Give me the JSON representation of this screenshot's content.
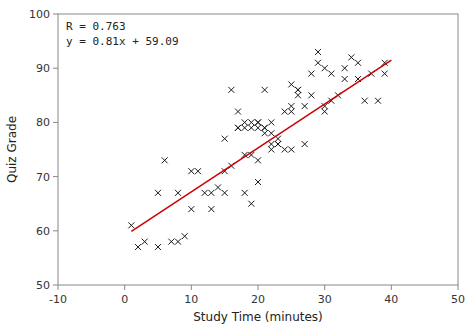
{
  "chart_data": {
    "type": "scatter",
    "xlabel": "Study Time (minutes)",
    "ylabel": "Quiz Grade",
    "xlim": [
      -10,
      50
    ],
    "ylim": [
      50,
      100
    ],
    "xticks": [
      -10,
      0,
      10,
      20,
      30,
      40,
      50
    ],
    "yticks": [
      50,
      60,
      70,
      80,
      90,
      100
    ],
    "grid": false,
    "annotations": [
      "R = 0.763",
      "y = 0.81x + 59.09"
    ],
    "series": [
      {
        "type": "scatter",
        "color": "#1a1a1a",
        "marker": "x",
        "x": [
          1,
          2,
          3,
          5,
          5,
          6,
          7,
          8,
          8,
          9,
          10,
          10,
          11,
          12,
          13,
          13,
          14,
          15,
          15,
          15,
          16,
          16,
          17,
          17,
          17,
          18,
          18,
          18,
          18,
          19,
          19,
          19,
          19,
          20,
          20,
          20,
          20,
          20,
          21,
          21,
          21,
          21,
          22,
          22,
          22,
          22,
          23,
          23,
          23,
          24,
          24,
          25,
          25,
          25,
          25,
          26,
          26,
          26,
          27,
          27,
          28,
          28,
          29,
          29,
          30,
          30,
          30,
          31,
          31,
          32,
          33,
          33,
          34,
          35,
          35,
          36,
          37,
          38,
          39,
          39
        ],
        "values": [
          61,
          57,
          58,
          57,
          67,
          73,
          58,
          58,
          67,
          59,
          64,
          71,
          71,
          67,
          64,
          67,
          68,
          67,
          71,
          77,
          72,
          86,
          79,
          79,
          82,
          67,
          74,
          79,
          80,
          65,
          74,
          79,
          80,
          69,
          73,
          79,
          80,
          80,
          78,
          79,
          79,
          86,
          75,
          76,
          78,
          80,
          76,
          76,
          77,
          75,
          82,
          75,
          82,
          83,
          87,
          85,
          86,
          86,
          76,
          83,
          85,
          89,
          91,
          93,
          82,
          83,
          90,
          84,
          89,
          85,
          88,
          90,
          92,
          88,
          91,
          84,
          89,
          84,
          89,
          91
        ]
      },
      {
        "type": "line",
        "color": "#cc0000",
        "x": [
          1,
          40
        ],
        "values": [
          59.9,
          91.49
        ]
      }
    ]
  }
}
